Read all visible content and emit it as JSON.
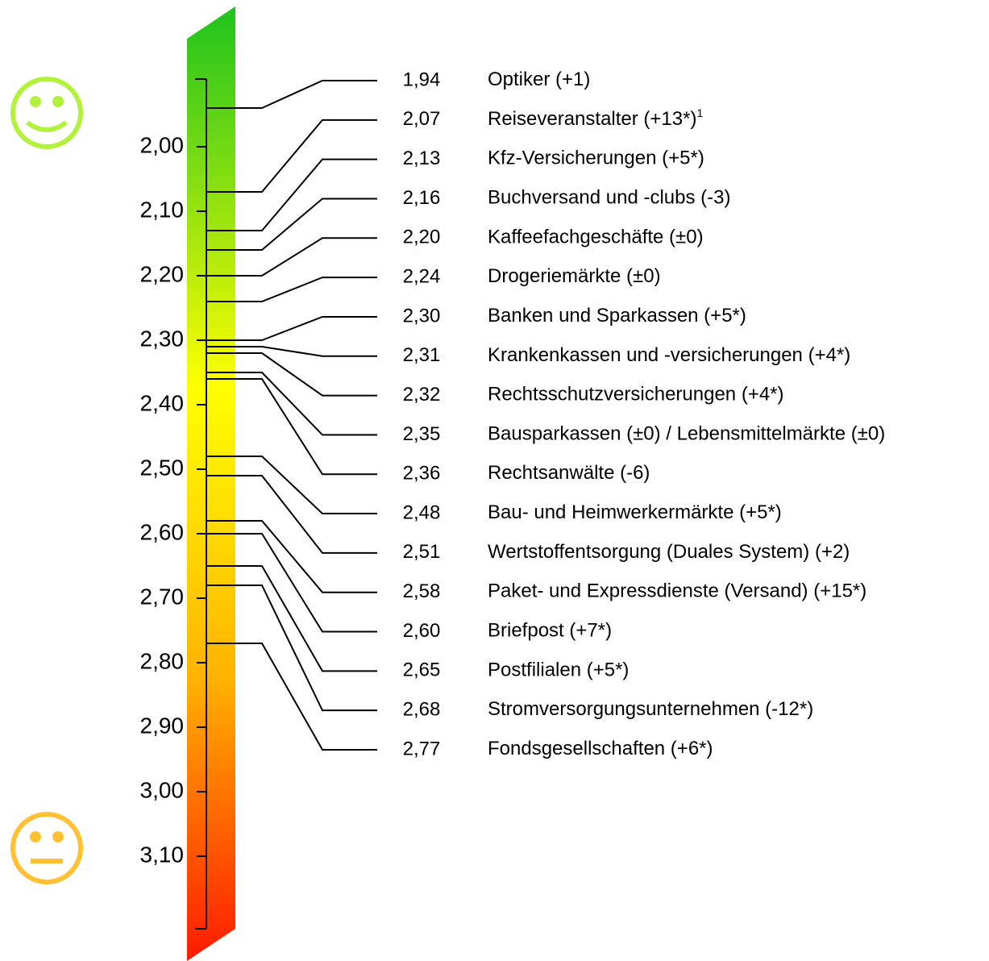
{
  "chart_data": {
    "type": "ladder",
    "categories": [
      "Optiker (+1)",
      "Reiseveranstalter (+13*)",
      "Kfz-Versicherungen (+5*)",
      "Buchversand und -clubs (-3)",
      "Kaffeefachgeschäfte (±0)",
      "Drogeriemärkte (±0)",
      "Banken und Sparkassen (+5*)",
      "Krankenkassen und -versicherungen (+4*)",
      "Rechtsschutzversicherungen (+4*)",
      "Bausparkassen (±0) / Lebensmittelmärkte (±0)",
      "Rechtsanwälte (-6)",
      "Bau- und Heimwerkermärkte (+5*)",
      "Wertstoffentsorgung (Duales System) (+2)",
      "Paket- und Expressdienste (Versand) (+15*)",
      "Briefpost (+7*)",
      "Postfilialen (+5*)",
      "Stromversorgungsunternehmen (-12*)",
      "Fondsgesellschaften (+6*)"
    ],
    "category_notes": [
      null,
      "1",
      null,
      null,
      null,
      null,
      null,
      null,
      null,
      null,
      null,
      null,
      null,
      null,
      null,
      null,
      null,
      null
    ],
    "values": [
      1.94,
      2.07,
      2.13,
      2.16,
      2.2,
      2.24,
      2.3,
      2.31,
      2.32,
      2.35,
      2.36,
      2.48,
      2.51,
      2.58,
      2.6,
      2.65,
      2.68,
      2.77
    ],
    "value_labels": [
      "1,94",
      "2,07",
      "2,13",
      "2,16",
      "2,20",
      "2,24",
      "2,30",
      "2,31",
      "2,32",
      "2,35",
      "2,36",
      "2,48",
      "2,51",
      "2,58",
      "2,60",
      "2,65",
      "2,68",
      "2,77"
    ],
    "ylim": [
      1.895,
      3.2125
    ],
    "yticks": [
      {
        "value": 2.0,
        "label": "2,00"
      },
      {
        "value": 2.1,
        "label": "2,10"
      },
      {
        "value": 2.2,
        "label": "2,20"
      },
      {
        "value": 2.3,
        "label": "2,30"
      },
      {
        "value": 2.4,
        "label": "2,40"
      },
      {
        "value": 2.5,
        "label": "2,50"
      },
      {
        "value": 2.6,
        "label": "2,60"
      },
      {
        "value": 2.7,
        "label": "2,70"
      },
      {
        "value": 2.8,
        "label": "2,80"
      },
      {
        "value": 2.9,
        "label": "2,90"
      },
      {
        "value": 3.0,
        "label": "3,00"
      },
      {
        "value": 3.1,
        "label": "3,10"
      }
    ],
    "color": "#000000"
  }
}
